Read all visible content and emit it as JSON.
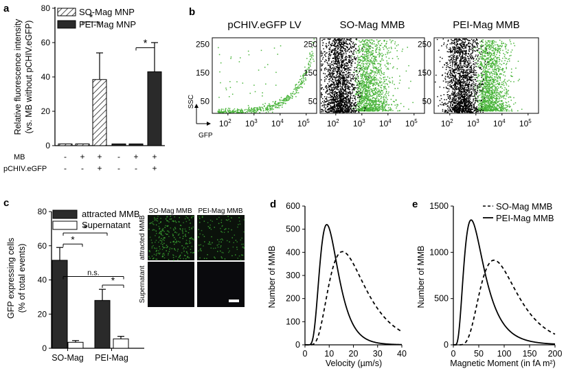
{
  "panels": {
    "a": "a",
    "b": "b",
    "c": "c",
    "d": "d",
    "e": "e"
  },
  "colors": {
    "black_bar": "#2a2a2a",
    "gfp": "#49b43a",
    "scatter_black": "#000000"
  },
  "chart_data": [
    {
      "id": "a",
      "type": "bar",
      "ylabel_lines": [
        "Relative fluorescence intensity",
        "(vs. MB without pCHIV.eGFP)"
      ],
      "ylim": [
        0,
        80
      ],
      "yticks": [
        "0",
        "20",
        "40",
        "60",
        "80"
      ],
      "legend": [
        {
          "name": "SO-Mag MNP",
          "pattern": "hatched"
        },
        {
          "name": "PEI-Mag MNP",
          "pattern": "solid"
        }
      ],
      "row_labels": [
        "MB",
        "pCHIV.eGFP"
      ],
      "conditions": [
        {
          "series": "SO-Mag MNP",
          "MB": "-",
          "pCHIV": "-",
          "value": 1,
          "err": 0
        },
        {
          "series": "SO-Mag MNP",
          "MB": "+",
          "pCHIV": "-",
          "value": 1,
          "err": 0
        },
        {
          "series": "SO-Mag MNP",
          "MB": "+",
          "pCHIV": "+",
          "value": 38.5,
          "err": 15.5
        },
        {
          "series": "PEI-Mag MNP",
          "MB": "-",
          "pCHIV": "-",
          "value": 1,
          "err": 0
        },
        {
          "series": "PEI-Mag MNP",
          "MB": "+",
          "pCHIV": "-",
          "value": 1,
          "err": 0
        },
        {
          "series": "PEI-Mag MNP",
          "MB": "+",
          "pCHIV": "+",
          "value": 43,
          "err": 17
        }
      ],
      "significance": [
        "*",
        "*"
      ]
    },
    {
      "id": "b",
      "type": "scatter",
      "xlabel": "GFP",
      "ylabel": "SSC",
      "subplots": [
        "pCHIV.eGFP LV",
        "SO-Mag MMB",
        "PEI-Mag MMB"
      ],
      "yticks": [
        "50",
        "150",
        "250"
      ],
      "xticks": [
        "10",
        "10",
        "10",
        "10"
      ],
      "xtick_exps": [
        "2",
        "3",
        "4",
        "5"
      ]
    },
    {
      "id": "c",
      "type": "bar",
      "ylabel_lines": [
        "GFP expressing cells",
        "(% of total events)"
      ],
      "ylim": [
        0,
        80
      ],
      "yticks": [
        "0",
        "20",
        "40",
        "60",
        "80"
      ],
      "categories": [
        "SO-Mag",
        "PEI-Mag"
      ],
      "series": [
        {
          "name": "attracted MMB",
          "values": [
            51.5,
            28
          ],
          "errors": [
            7.5,
            6.5
          ]
        },
        {
          "name": "Supernatant",
          "values": [
            3.5,
            5.5
          ],
          "errors": [
            1,
            1.5
          ]
        }
      ],
      "significance": [
        "*",
        "*",
        "n.s.",
        "*"
      ],
      "image_labels": {
        "cols": [
          "SO-Mag MMB",
          "PEI-Mag MMB"
        ],
        "rows": [
          "attracted MMB",
          "Supernatant"
        ]
      }
    },
    {
      "id": "d",
      "type": "line",
      "xlabel": "Velocity (µm/s)",
      "ylabel": "Number of MMB",
      "xlim": [
        0,
        40
      ],
      "ylim": [
        0,
        600
      ],
      "xticks": [
        "0",
        "10",
        "20",
        "30",
        "40"
      ],
      "yticks": [
        "0",
        "100",
        "200",
        "300",
        "400",
        "500",
        "600"
      ],
      "series": [
        {
          "name": "PEI-Mag MMB",
          "style": "solid",
          "peak_x": 9,
          "peak_y": 520
        },
        {
          "name": "SO-Mag MMB",
          "style": "dashed",
          "peak_x": 15.5,
          "peak_y": 403
        }
      ]
    },
    {
      "id": "e",
      "type": "line",
      "xlabel": "Magnetic Moment (in fA m²)",
      "ylabel": "Number of MMB",
      "xlim": [
        0,
        200
      ],
      "ylim": [
        0,
        1500
      ],
      "xticks": [
        "0",
        "50",
        "100",
        "150",
        "200"
      ],
      "yticks": [
        "0",
        "500",
        "1000",
        "1500"
      ],
      "legend": [
        {
          "name": "SO-Mag MMB",
          "style": "dashed"
        },
        {
          "name": "PEI-Mag MMB",
          "style": "solid"
        }
      ],
      "series": [
        {
          "name": "PEI-Mag MMB",
          "style": "solid",
          "peak_x": 35,
          "peak_y": 1350
        },
        {
          "name": "SO-Mag MMB",
          "style": "dashed",
          "peak_x": 80,
          "peak_y": 915
        }
      ]
    }
  ]
}
